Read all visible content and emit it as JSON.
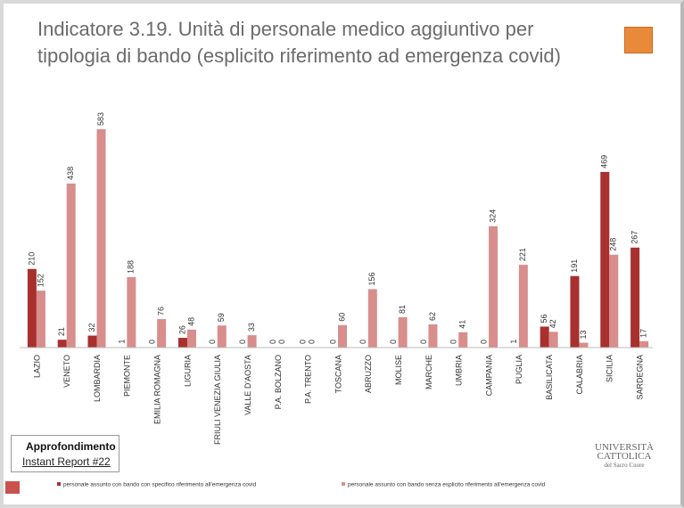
{
  "chart_data": {
    "type": "bar",
    "title": "Indicatore 3.19. Unità di personale medico aggiuntivo per tipologia di bando (esplicito riferimento ad emergenza covid)",
    "categories": [
      "LAZIO",
      "VENETO",
      "LOMBARDIA",
      "PIEMONTE",
      "EMILIA ROMAGNA",
      "LIGURIA",
      "FRIULI VENEZIA GIULIA",
      "VALLE D'AOSTA",
      "P.A. BOLZANO",
      "P.A. TRENTO",
      "TOSCANA",
      "ABRUZZO",
      "MOLISE",
      "MARCHE",
      "UMBRIA",
      "CAMPANIA",
      "PUGLIA",
      "BASILICATA",
      "CALABRIA",
      "SICILIA",
      "SARDEGNA"
    ],
    "series": [
      {
        "name": "personale assunto con bando con specifico riferimento all'emergenza covid",
        "color": "#a8302f",
        "values": [
          210,
          21,
          32,
          1,
          0,
          26,
          0,
          0,
          0,
          0,
          0,
          0,
          0,
          0,
          0,
          0,
          1,
          56,
          191,
          469,
          267
        ]
      },
      {
        "name": "personale assunto con bando senza esplicito riferimento all'emergenza covid",
        "color": "#d88e8c",
        "values": [
          152,
          438,
          583,
          188,
          76,
          48,
          59,
          33,
          0,
          0,
          60,
          156,
          81,
          62,
          41,
          324,
          221,
          42,
          13,
          248,
          17
        ]
      }
    ]
  },
  "box": {
    "title": "Approfondimento",
    "link": "Instant Report #22"
  },
  "logo": {
    "lines": [
      "UNIVERSITÀ",
      "CATTOLICA",
      "del Sacro Cuore"
    ]
  }
}
